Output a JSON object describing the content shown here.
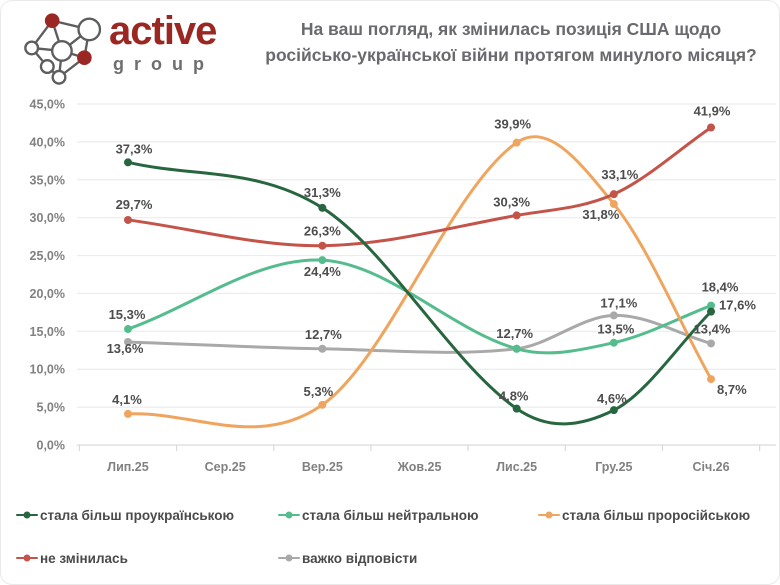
{
  "logo": {
    "brand": "active",
    "sub": "group"
  },
  "title": {
    "line1": "На ваш погляд, як змінилась позиція США щодо",
    "line2": "російсько-української війни протягом минулого місяця?"
  },
  "chart_data": {
    "type": "line",
    "title": "На ваш погляд, як змінилась позиція США щодо російсько-української війни протягом минулого місяця?",
    "categories": [
      "Лип.25",
      "Сер.25",
      "Вер.25",
      "Жов.25",
      "Лис.25",
      "Гру.25",
      "Січ.26"
    ],
    "y_ticks": [
      "0,0%",
      "5,0%",
      "10,0%",
      "15,0%",
      "20,0%",
      "25,0%",
      "30,0%",
      "35,0%",
      "40,0%",
      "45,0%"
    ],
    "ylim": [
      0,
      45
    ],
    "grid": true,
    "legend_position": "bottom",
    "series": [
      {
        "name": "стала більш проукраїнською",
        "color": "#27663f",
        "values": [
          37.3,
          null,
          31.3,
          null,
          4.8,
          4.6,
          17.6
        ],
        "labels": [
          "37,3%",
          null,
          "31,3%",
          null,
          "4,8%",
          "4,6%",
          "17,6%"
        ]
      },
      {
        "name": "стала більш нейтральною",
        "color": "#55bd8d",
        "values": [
          15.3,
          null,
          24.4,
          null,
          12.7,
          13.5,
          18.4
        ],
        "labels": [
          "15,3%",
          null,
          "24,4%",
          null,
          "12,7%",
          "13,5%",
          "18,4%"
        ]
      },
      {
        "name": "стала більш проросійською",
        "color": "#f0a55f",
        "values": [
          4.1,
          null,
          5.3,
          null,
          39.9,
          31.8,
          8.7
        ],
        "labels": [
          "4,1%",
          null,
          "5,3%",
          null,
          "39,9%",
          "31,8%",
          "8,7%"
        ]
      },
      {
        "name": "не змінилась",
        "color": "#c4544a",
        "values": [
          29.7,
          null,
          26.3,
          null,
          30.3,
          33.1,
          41.9
        ],
        "labels": [
          "29,7%",
          null,
          "26,3%",
          null,
          "30,3%",
          "33,1%",
          "41,9%"
        ]
      },
      {
        "name": "важко відповісти",
        "color": "#a9a9a9",
        "values": [
          13.6,
          null,
          12.7,
          null,
          12.7,
          17.1,
          13.4
        ],
        "labels": [
          "13,6%",
          null,
          "12,7%",
          null,
          null,
          "17,1%",
          "13,4%"
        ]
      }
    ]
  }
}
